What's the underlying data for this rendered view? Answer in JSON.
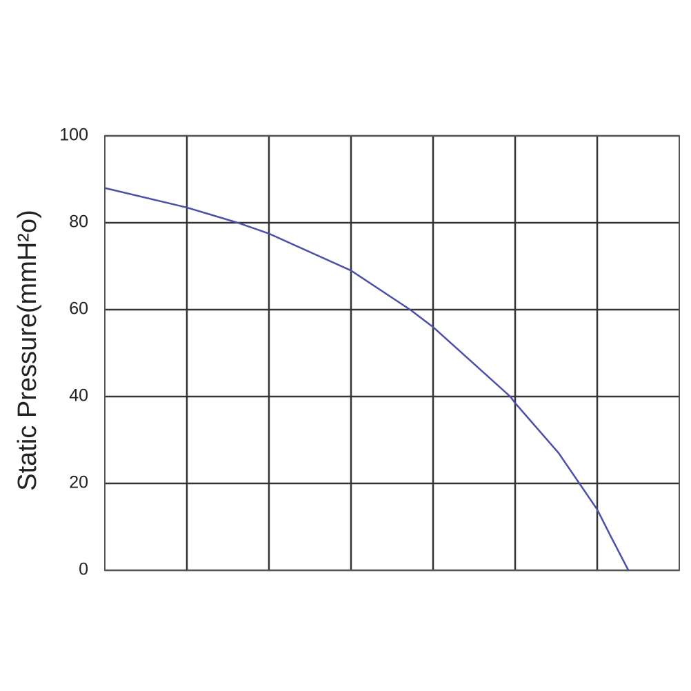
{
  "chart_data": {
    "type": "line",
    "y_label": "Static Pressure(mmH²o)",
    "x": [
      0,
      1,
      1.62,
      2,
      3,
      3.72,
      4,
      4.94,
      5,
      5.53,
      6,
      6.16,
      6.38
    ],
    "values": [
      88,
      83.5,
      80,
      77.5,
      69,
      60,
      56,
      40,
      38.5,
      27,
      14,
      8,
      0
    ],
    "color": "#4a4fa8",
    "xlim": [
      0,
      7
    ],
    "xgrid": [
      1,
      2,
      3,
      4,
      5,
      6
    ],
    "ylim": [
      0,
      100
    ],
    "yticks": [
      0,
      20,
      40,
      60,
      80,
      100
    ],
    "grid": true
  }
}
